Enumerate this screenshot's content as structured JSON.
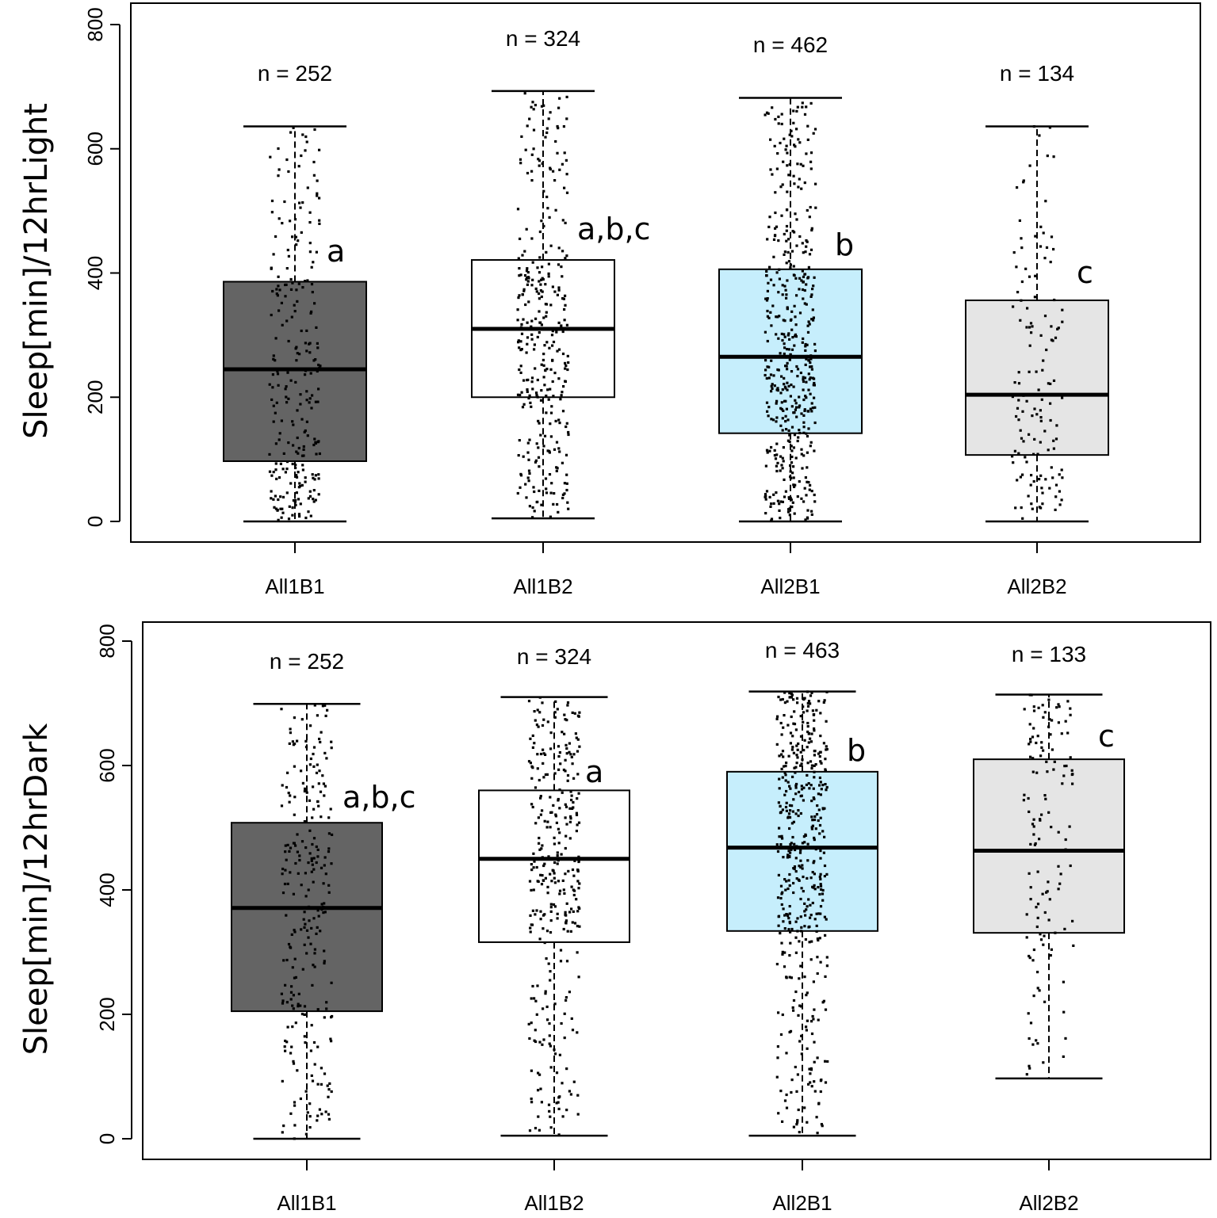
{
  "chart_data": [
    {
      "type": "boxplot",
      "ylabel": "Sleep[min]/12hrLight",
      "ylim": [
        0,
        800
      ],
      "yticks": [
        "0",
        "200",
        "400",
        "600",
        "800"
      ],
      "categories": [
        "All1B1",
        "All1B2",
        "All2B1",
        "All2B2"
      ],
      "boxes": [
        {
          "label": "All1B1",
          "n_label": "n = 252",
          "n": 252,
          "min": 0,
          "q1": 97,
          "median": 245,
          "q3": 386,
          "max": 636,
          "fill": "#646464",
          "sig": "a"
        },
        {
          "label": "All1B2",
          "n_label": "n = 324",
          "n": 324,
          "min": 5,
          "q1": 200,
          "median": 310,
          "q3": 421,
          "max": 693,
          "fill": "#ffffff",
          "sig": "a,b,c"
        },
        {
          "label": "All2B1",
          "n_label": "n = 462",
          "n": 462,
          "min": 0,
          "q1": 142,
          "median": 265,
          "q3": 406,
          "max": 682,
          "fill": "#c6eefc",
          "sig": "b"
        },
        {
          "label": "All2B2",
          "n_label": "n = 134",
          "n": 134,
          "min": 0,
          "q1": 107,
          "median": 204,
          "q3": 356,
          "max": 636,
          "fill": "#e5e5e5",
          "sig": "c"
        }
      ]
    },
    {
      "type": "boxplot",
      "ylabel": "Sleep[min]/12hrDark",
      "ylim": [
        0,
        800
      ],
      "yticks": [
        "0",
        "200",
        "400",
        "600",
        "800"
      ],
      "categories": [
        "All1B1",
        "All1B2",
        "All2B1",
        "All2B2"
      ],
      "boxes": [
        {
          "label": "All1B1",
          "n_label": "n = 252",
          "n": 252,
          "min": 0,
          "q1": 205,
          "median": 371,
          "q3": 508,
          "max": 699,
          "fill": "#646464",
          "sig": "a,b,c"
        },
        {
          "label": "All1B2",
          "n_label": "n = 324",
          "n": 324,
          "min": 5,
          "q1": 316,
          "median": 450,
          "q3": 560,
          "max": 710,
          "fill": "#ffffff",
          "sig": "a"
        },
        {
          "label": "All2B1",
          "n_label": "n = 463",
          "n": 463,
          "min": 5,
          "q1": 334,
          "median": 468,
          "q3": 590,
          "max": 719,
          "fill": "#c6eefc",
          "sig": "b"
        },
        {
          "label": "All2B2",
          "n_label": "n = 133",
          "n": 133,
          "min": 97,
          "q1": 331,
          "median": 463,
          "q3": 610,
          "max": 714,
          "fill": "#e5e5e5",
          "sig": "c"
        }
      ]
    }
  ]
}
